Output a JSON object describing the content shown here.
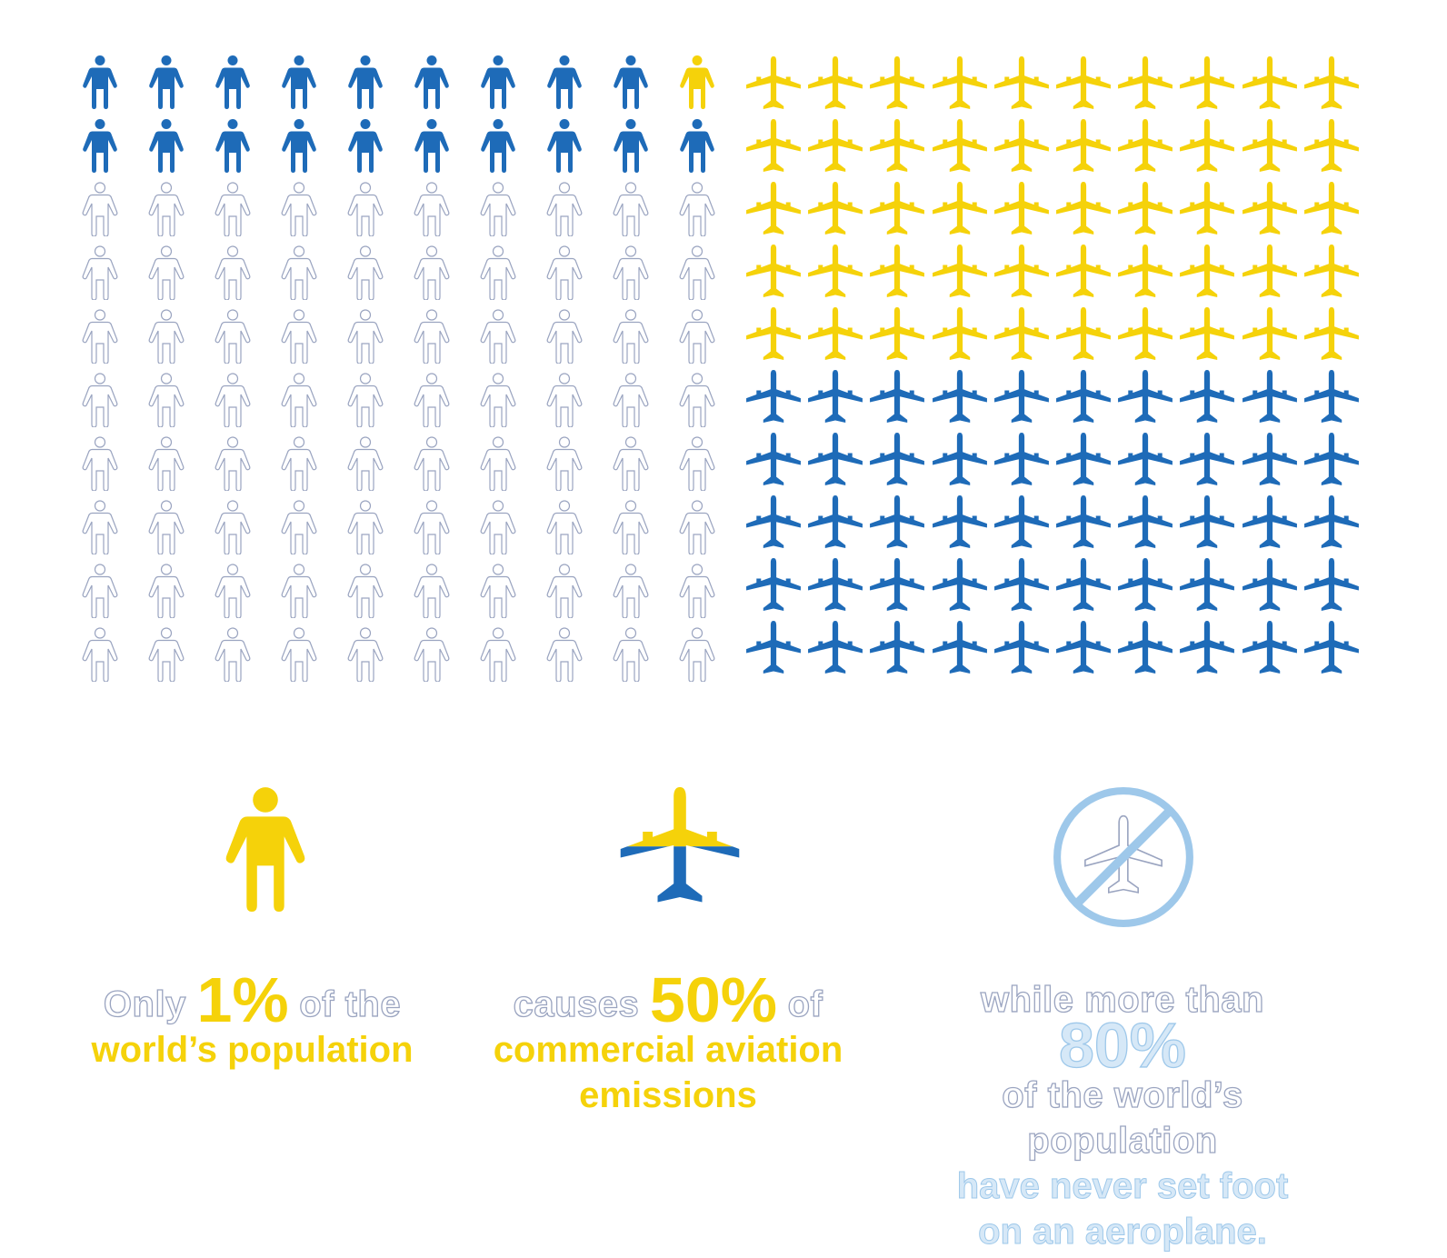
{
  "people_grid": {
    "rows": 10,
    "cols": 10,
    "total": 100,
    "highlighted_one": 1,
    "blue_count": 19,
    "white_count": 80
  },
  "planes_grid": {
    "rows": 10,
    "cols": 10,
    "total": 100,
    "yellow_count": 50,
    "blue_count": 50
  },
  "colors": {
    "yellow": "#f5d20a",
    "blue": "#1e6bb8",
    "light_blue": "#9ec8ea",
    "outline_gray": "#9aa4c0"
  },
  "icons": {
    "person": "person-icon",
    "plane": "plane-icon",
    "no_plane": "no-plane-icon"
  },
  "captions": {
    "c1": {
      "pre": "Only ",
      "percent": "1%",
      "post": " of the",
      "line2": "world’s population"
    },
    "c2": {
      "pre": "causes ",
      "percent": "50%",
      "post": " of",
      "line2": "commercial aviation",
      "line3": "emissions"
    },
    "c3": {
      "pre": "while more than ",
      "percent": "80%",
      "line2": "of the world’s population",
      "line3": "have never set foot",
      "line4": "on an aeroplane."
    }
  }
}
